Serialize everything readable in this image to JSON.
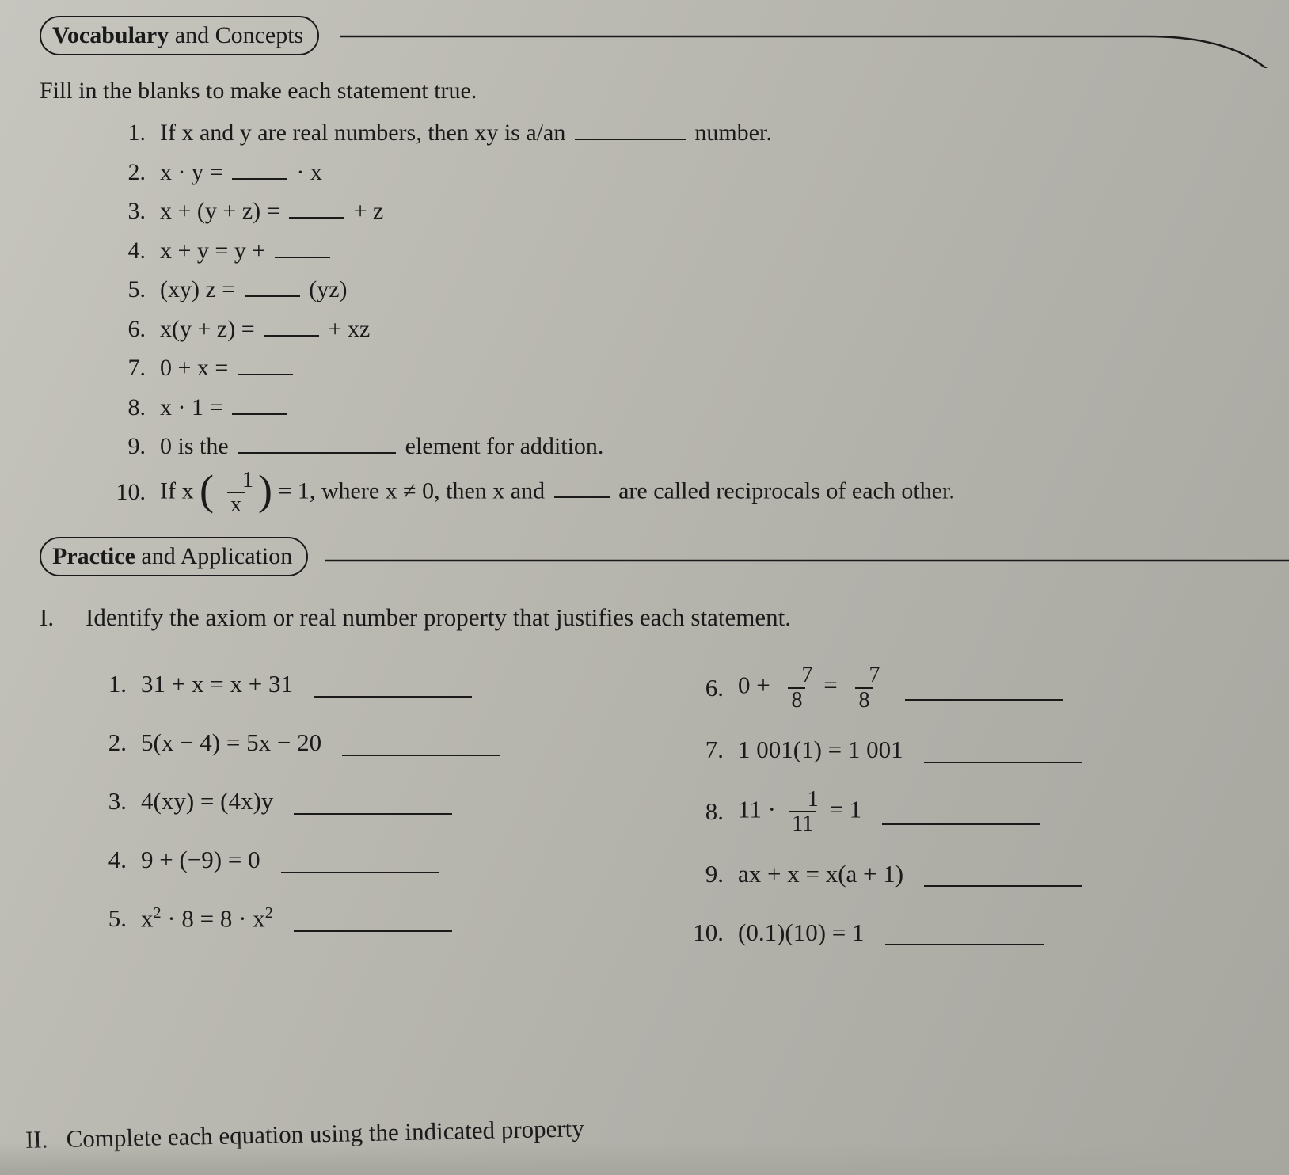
{
  "colors": {
    "ink": "#1a1a1a",
    "paper_gradient": [
      "#c6c5be",
      "#bcbbb3",
      "#b2b1aa",
      "#a7a7a0"
    ],
    "border": "#1a1a1a"
  },
  "typography": {
    "family": "Times New Roman",
    "body_size_pt": 23,
    "header_size_pt": 23
  },
  "section1": {
    "title_bold": "Vocabulary",
    "title_rest": " and Concepts",
    "intro": "Fill in the blanks to make each statement true.",
    "items": [
      {
        "n": "1.",
        "pre": "If x and y are real numbers, then xy is a/an ",
        "post": " number."
      },
      {
        "n": "2.",
        "pre": "x · y = ",
        "post": " · x"
      },
      {
        "n": "3.",
        "pre": "x + (y + z) = ",
        "post": " + z"
      },
      {
        "n": "4.",
        "pre": "x + y = y + ",
        "post": ""
      },
      {
        "n": "5.",
        "pre": "(xy) z = ",
        "post": " (yz)"
      },
      {
        "n": "6.",
        "pre": "x(y + z) = ",
        "post": " + xz"
      },
      {
        "n": "7.",
        "pre": "0 + x = ",
        "post": ""
      },
      {
        "n": "8.",
        "pre": "x · 1 = ",
        "post": ""
      },
      {
        "n": "9.",
        "pre": "0 is the ",
        "post": " element for addition."
      },
      {
        "n": "10.",
        "pre_a": "If x",
        "frac_num": "1",
        "frac_den": "x",
        "mid": "= 1, where x ≠ 0, then x and ",
        "post": " are called reciprocals of each other."
      }
    ]
  },
  "section2": {
    "title_bold": "Practice",
    "title_rest": " and Application",
    "roman": "I.",
    "instruction": "Identify the axiom or real number property that justifies each statement.",
    "left": [
      {
        "n": "1.",
        "html": "31 + x = x + 31"
      },
      {
        "n": "2.",
        "html": "5(x − 4) = 5x − 20"
      },
      {
        "n": "3.",
        "html": "4(xy) = (4x)y"
      },
      {
        "n": "4.",
        "html": "9 + (−9) = 0"
      },
      {
        "n": "5.",
        "html": "x<sup>2</sup> · 8 = 8 · x<sup>2</sup>"
      }
    ],
    "right": [
      {
        "n": "6.",
        "type": "frac_sum",
        "lead": "0 + ",
        "num1": "7",
        "den1": "8",
        "mid": " = ",
        "num2": "7",
        "den2": "8"
      },
      {
        "n": "7.",
        "type": "plain",
        "html": "1 001(1) = 1 001"
      },
      {
        "n": "8.",
        "type": "frac_mul",
        "lead": "11 · ",
        "num1": "1",
        "den1": "11",
        "tail": " = 1"
      },
      {
        "n": "9.",
        "type": "plain",
        "html": "ax + x = x(a + 1)"
      },
      {
        "n": "10.",
        "type": "plain",
        "html": "(0.1)(10) = 1"
      }
    ]
  },
  "cutoff": {
    "roman": "II.",
    "text": "Complete each equation using the indicated property"
  }
}
